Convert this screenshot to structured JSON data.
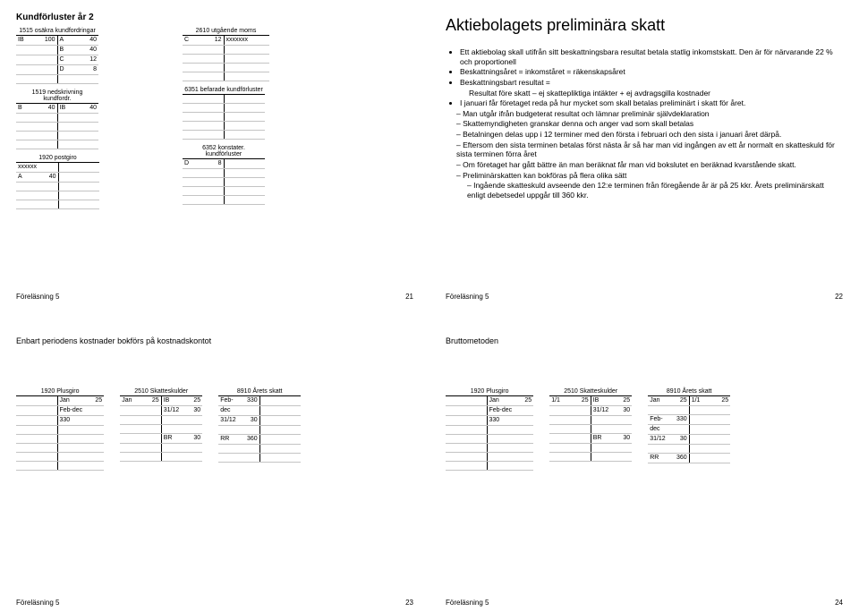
{
  "footer_label": "Föreläsning 5",
  "slide1": {
    "title": "Kundförluster år 2",
    "pageno": "21",
    "a": {
      "t1": {
        "title": "1515 osäkra kundfordringar",
        "rows": [
          [
            "IB",
            "100",
            "A",
            "40"
          ],
          [
            "",
            "",
            "B",
            "40"
          ],
          [
            "",
            "",
            "C",
            "12"
          ],
          [
            "",
            "",
            "D",
            "8"
          ],
          [
            "",
            "",
            "",
            ""
          ]
        ]
      },
      "t2": {
        "title": "1519 nedskrivning kundfordr.",
        "rows": [
          [
            "B",
            "40",
            "IB",
            "40"
          ],
          [
            "",
            "",
            "",
            ""
          ],
          [
            "",
            "",
            "",
            ""
          ],
          [
            "",
            "",
            "",
            ""
          ],
          [
            "",
            "",
            "",
            ""
          ]
        ]
      },
      "t3": {
        "title": "1920 postgiro",
        "rows": [
          [
            "xxxxxx",
            "",
            "",
            ""
          ],
          [
            "A",
            "40",
            "",
            ""
          ],
          [
            "",
            "",
            "",
            ""
          ],
          [
            "",
            "",
            "",
            ""
          ],
          [
            "",
            "",
            "",
            ""
          ]
        ]
      }
    },
    "b": {
      "t1": {
        "title": "2610 utgående moms",
        "rows": [
          [
            "C",
            "12",
            "xxxxxxx",
            ""
          ],
          [
            "",
            "",
            "",
            ""
          ],
          [
            "",
            "",
            "",
            ""
          ],
          [
            "",
            "",
            "",
            ""
          ],
          [
            "",
            "",
            "",
            ""
          ]
        ]
      },
      "t2": {
        "title": "6351 befarade kundförluster",
        "rows": [
          [
            "",
            "",
            "",
            ""
          ],
          [
            "",
            "",
            "",
            ""
          ],
          [
            "",
            "",
            "",
            ""
          ],
          [
            "",
            "",
            "",
            ""
          ],
          [
            "",
            "",
            "",
            ""
          ]
        ]
      },
      "t3": {
        "title": "6352 konstater. kundförluster",
        "rows": [
          [
            "D",
            "8",
            "",
            ""
          ],
          [
            "",
            "",
            "",
            ""
          ],
          [
            "",
            "",
            "",
            ""
          ],
          [
            "",
            "",
            "",
            ""
          ],
          [
            "",
            "",
            "",
            ""
          ]
        ]
      }
    }
  },
  "slide2": {
    "title": "Aktiebolagets preliminära skatt",
    "pageno": "22",
    "bullets": [
      "Ett aktiebolag skall utifrån sitt beskattningsbara resultat betala statlig inkomstskatt. Den är för närvarande 22 % och proportionell",
      "Beskattningsåret = inkomståret = räkenskapsåret",
      "Beskattningsbart resultat =",
      "__indent__Resultat före skatt – ej skattepliktiga intäkter + ej avdragsgilla kostnader",
      "I januari får företaget reda på hur mycket som skall betalas preliminärt i skatt för året."
    ],
    "dashes": [
      "Man utgår ifrån budgeterat resultat och lämnar preliminär självdeklaration",
      "Skattemyndigheten granskar denna och anger vad som skall betalas",
      "Betalningen delas upp i 12 terminer med den första i februari och den sista i januari året därpå.",
      "Eftersom den sista terminen betalas först nästa år så har man vid ingången av ett år normalt en skatteskuld för sista terminen förra året",
      "Om företaget har gått bättre än man beräknat får man vid bokslutet en beräknad kvarstående skatt.",
      "Preliminärskatten kan bokföras på flera olika sätt"
    ],
    "dashes2": [
      "Ingående skatteskuld avseende den 12:e terminen från föregående år är på 25 kkr. Årets preliminärskatt enligt debetsedel uppgår till 360 kkr."
    ]
  },
  "slide3": {
    "title": "Enbart periodens kostnader bokförs på kostnadskontot",
    "pageno": "23",
    "t1": {
      "title": "1920 Plusgiro",
      "rows": [
        [
          "",
          "",
          "Jan",
          "25"
        ],
        [
          "",
          "",
          "Feb-dec",
          ""
        ],
        [
          "",
          "",
          "330",
          ""
        ],
        [
          "",
          "",
          "",
          ""
        ],
        [
          "",
          "",
          "",
          ""
        ],
        [
          "",
          "",
          "",
          ""
        ],
        [
          "",
          "",
          "",
          ""
        ],
        [
          "",
          "",
          "",
          ""
        ]
      ]
    },
    "t2": {
      "title": "2510 Skatteskulder",
      "rows": [
        [
          "Jan",
          "25",
          "IB",
          "25"
        ],
        [
          "",
          "",
          "31/12",
          "30"
        ],
        [
          "",
          "",
          "",
          ""
        ],
        [
          "",
          "",
          "",
          ""
        ],
        [
          "",
          "",
          "BR",
          "30"
        ],
        [
          "",
          "",
          "",
          ""
        ],
        [
          "",
          "",
          "",
          ""
        ]
      ]
    },
    "t3": {
      "title": "8910 Årets skatt",
      "rows": [
        [
          "Feb-",
          "330",
          "",
          ""
        ],
        [
          "dec",
          "",
          "",
          ""
        ],
        [
          "31/12",
          "30",
          "",
          ""
        ],
        [
          "",
          "",
          "",
          ""
        ],
        [
          "RR",
          "360",
          "",
          ""
        ],
        [
          "",
          "",
          "",
          ""
        ],
        [
          "",
          "",
          "",
          ""
        ]
      ]
    }
  },
  "slide4": {
    "title": "Bruttometoden",
    "pageno": "24",
    "t1": {
      "title": "1920 Plusgiro",
      "rows": [
        [
          "",
          "",
          "Jan",
          "25"
        ],
        [
          "",
          "",
          "Feb-dec",
          ""
        ],
        [
          "",
          "",
          "330",
          ""
        ],
        [
          "",
          "",
          "",
          ""
        ],
        [
          "",
          "",
          "",
          ""
        ],
        [
          "",
          "",
          "",
          ""
        ],
        [
          "",
          "",
          "",
          ""
        ],
        [
          "",
          "",
          "",
          ""
        ]
      ]
    },
    "t2": {
      "title": "2510 Skatteskulder",
      "rows": [
        [
          "1/1",
          "25",
          "IB",
          "25"
        ],
        [
          "",
          "",
          "31/12",
          "30"
        ],
        [
          "",
          "",
          "",
          ""
        ],
        [
          "",
          "",
          "",
          ""
        ],
        [
          "",
          "",
          "BR",
          "30"
        ],
        [
          "",
          "",
          "",
          ""
        ],
        [
          "",
          "",
          "",
          ""
        ]
      ]
    },
    "t3": {
      "title": "8910 Årets skatt",
      "rows": [
        [
          "Jan",
          "25",
          "1/1",
          "25"
        ],
        [
          "",
          "",
          "",
          ""
        ],
        [
          "Feb-",
          "330",
          "",
          ""
        ],
        [
          "dec",
          "",
          "",
          ""
        ],
        [
          "31/12",
          "30",
          "",
          ""
        ],
        [
          "",
          "",
          "",
          ""
        ],
        [
          "RR",
          "360",
          "",
          ""
        ]
      ]
    }
  }
}
